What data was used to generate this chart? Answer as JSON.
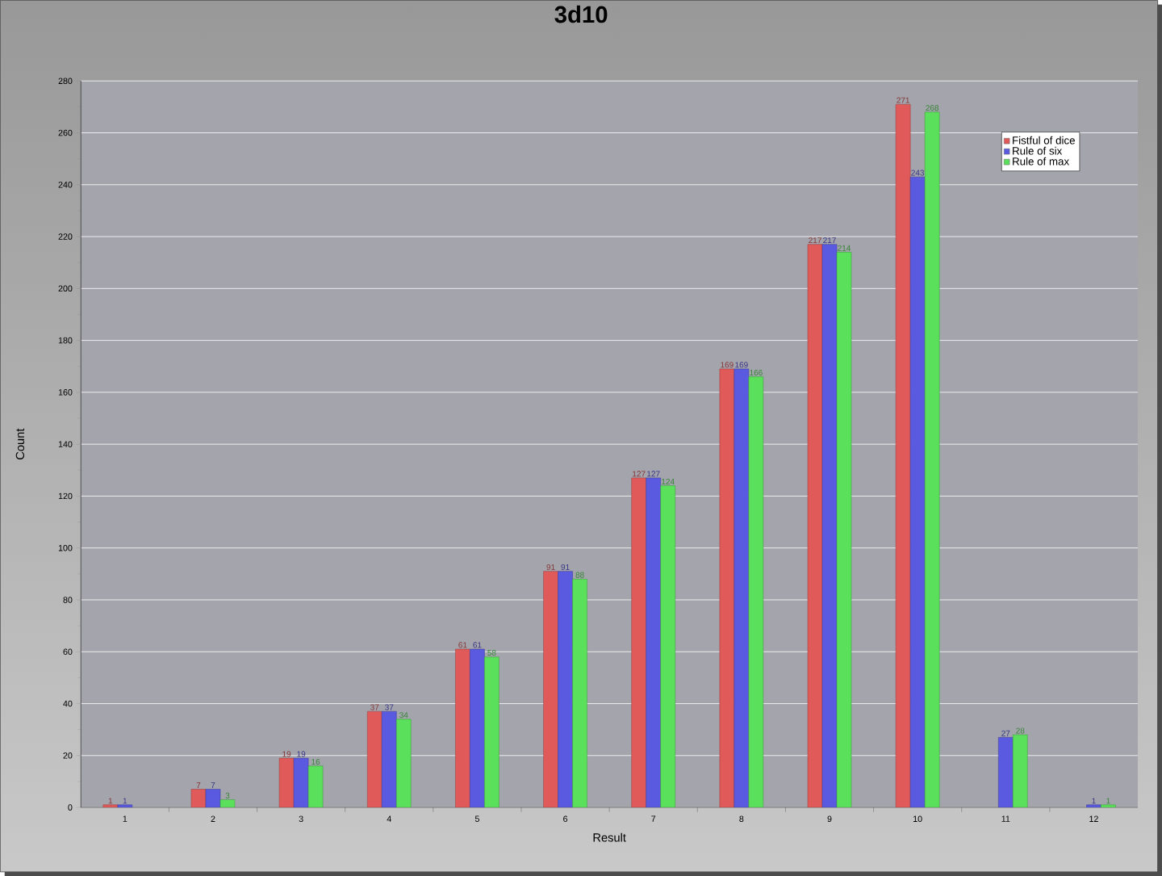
{
  "chart_data": {
    "type": "bar",
    "title": "3d10",
    "xlabel": "Result",
    "ylabel": "Count",
    "categories": [
      "1",
      "2",
      "3",
      "4",
      "5",
      "6",
      "7",
      "8",
      "9",
      "10",
      "11",
      "12"
    ],
    "series": [
      {
        "name": "Fistful of dice",
        "color": "#e05a5a",
        "values": [
          1,
          7,
          19,
          37,
          61,
          91,
          127,
          169,
          217,
          271,
          null,
          null
        ]
      },
      {
        "name": "Rule of six",
        "color": "#5a5ae0",
        "values": [
          1,
          7,
          19,
          37,
          61,
          91,
          127,
          169,
          217,
          243,
          27,
          1
        ]
      },
      {
        "name": "Rule of max",
        "color": "#5ae05a",
        "values": [
          null,
          3,
          16,
          34,
          58,
          88,
          124,
          166,
          214,
          268,
          28,
          1
        ]
      }
    ],
    "ylim": [
      0,
      280
    ],
    "yticks": [
      0,
      20,
      40,
      60,
      80,
      100,
      120,
      140,
      160,
      180,
      200,
      220,
      240,
      260,
      280
    ],
    "grid": "y",
    "legend": "top right",
    "data_labels": true
  }
}
